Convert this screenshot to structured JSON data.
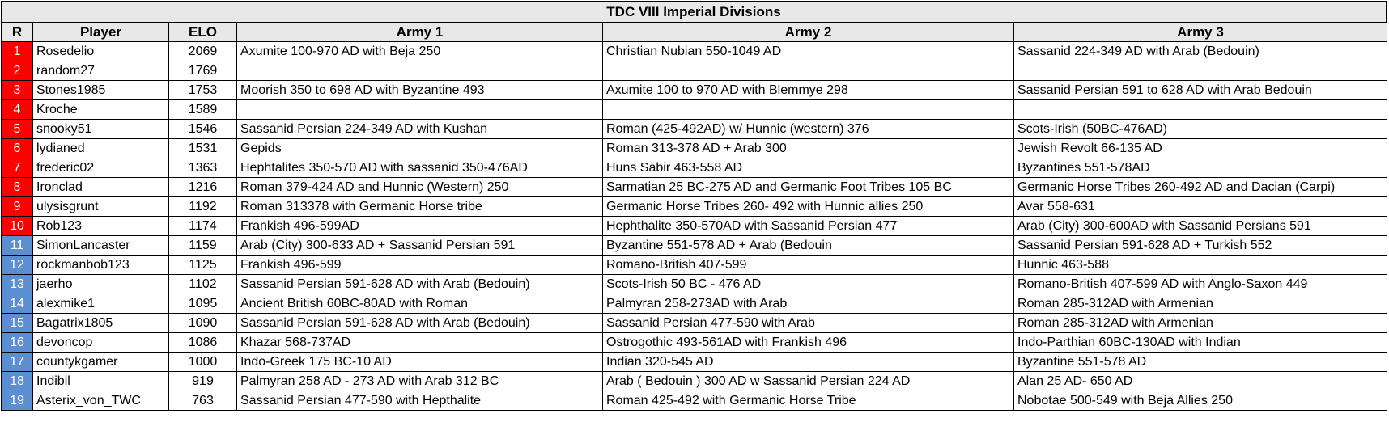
{
  "title": "TDC VIII Imperial Divisions",
  "headers": [
    "R",
    "Player",
    "ELO",
    "Army 1",
    "Army 2",
    "Army 3"
  ],
  "colors": {
    "top_rank": "#ff0000",
    "lower_rank": "#5b8fd1",
    "header_bg": "#e8e8e8"
  },
  "rows": [
    {
      "r": "1",
      "player": "Rosedelio",
      "elo": "2069",
      "a1": "Axumite 100-970 AD with Beja 250",
      "a2": "Christian Nubian 550-1049 AD",
      "a3": "Sassanid 224-349 AD with Arab (Bedouin)",
      "group": "red"
    },
    {
      "r": "2",
      "player": "random27",
      "elo": "1769",
      "a1": "",
      "a2": "",
      "a3": "",
      "group": "red"
    },
    {
      "r": "3",
      "player": "Stones1985",
      "elo": "1753",
      "a1": "Moorish 350 to 698 AD with Byzantine 493",
      "a2": "Axumite 100 to 970 AD with Blemmye 298",
      "a3": "Sassanid Persian 591 to 628 AD with Arab Bedouin",
      "group": "red"
    },
    {
      "r": "4",
      "player": "Kroche",
      "elo": "1589",
      "a1": "",
      "a2": "",
      "a3": "",
      "group": "red"
    },
    {
      "r": "5",
      "player": "snooky51",
      "elo": "1546",
      "a1": "Sassanid Persian 224-349 AD with Kushan",
      "a2": "Roman (425-492AD) w/ Hunnic (western) 376",
      "a3": "Scots-Irish (50BC-476AD)",
      "group": "red"
    },
    {
      "r": "6",
      "player": "lydianed",
      "elo": "1531",
      "a1": "Gepids",
      "a2": "Roman 313-378 AD + Arab 300",
      "a3": "Jewish Revolt 66-135 AD",
      "group": "red"
    },
    {
      "r": "7",
      "player": "frederic02",
      "elo": "1363",
      "a1": "Hephtalites 350-570 AD with sassanid  350-476AD",
      "a2": "Huns Sabir 463-558 AD",
      "a3": "Byzantines 551-578AD",
      "group": "red"
    },
    {
      "r": "8",
      "player": "Ironclad",
      "elo": "1216",
      "a1": "Roman 379-424 AD and Hunnic (Western) 250",
      "a2": "Sarmatian 25 BC-275 AD and Germanic Foot Tribes 105 BC",
      "a3": "Germanic Horse Tribes 260-492 AD and Dacian (Carpi)",
      "group": "red"
    },
    {
      "r": "9",
      "player": "ulysisgrunt",
      "elo": "1192",
      "a1": "Roman 313378 with Germanic Horse tribe",
      "a2": "Germanic Horse Tribes 260- 492 with Hunnic allies 250",
      "a3": "Avar 558-631",
      "group": "red"
    },
    {
      "r": "10",
      "player": "Rob123",
      "elo": "1174",
      "a1": "Frankish 496-599AD",
      "a2": "Hephthalite 350-570AD with Sassanid Persian 477",
      "a3": "Arab (City) 300-600AD with Sassanid Persians 591",
      "group": "red"
    },
    {
      "r": "11",
      "player": "SimonLancaster",
      "elo": "1159",
      "a1": "Arab (City) 300-633 AD + Sassanid Persian 591",
      "a2": "Byzantine 551-578 AD + Arab (Bedouin",
      "a3": "Sassanid Persian 591-628 AD + Turkish 552",
      "group": "blue"
    },
    {
      "r": "12",
      "player": "rockmanbob123",
      "elo": "1125",
      "a1": "Frankish 496-599",
      "a2": "Romano-British 407-599",
      "a3": "Hunnic 463-588",
      "group": "blue"
    },
    {
      "r": "13",
      "player": "jaerho",
      "elo": "1102",
      "a1": "Sassanid Persian 591-628 AD with Arab (Bedouin)",
      "a2": "Scots-Irish 50 BC - 476 AD",
      "a3": "Romano-British 407-599 AD with Anglo-Saxon 449",
      "group": "blue"
    },
    {
      "r": "14",
      "player": "alexmike1",
      "elo": "1095",
      "a1": "Ancient British 60BC-80AD with Roman",
      "a2": "Palmyran 258-273AD with Arab",
      "a3": "Roman 285-312AD with Armenian",
      "group": "blue"
    },
    {
      "r": "15",
      "player": "Bagatrix1805",
      "elo": "1090",
      "a1": "Sassanid Persian 591-628 AD with Arab (Bedouin)",
      "a2": "Sassanid Persian 477-590 with Arab",
      "a3": "Roman 285-312AD with Armenian",
      "group": "blue"
    },
    {
      "r": "16",
      "player": "devoncop",
      "elo": "1086",
      "a1": "Khazar 568-737AD",
      "a2": "Ostrogothic 493-561AD with Frankish 496",
      "a3": "Indo-Parthian 60BC-130AD with Indian",
      "group": "blue"
    },
    {
      "r": "17",
      "player": "countykgamer",
      "elo": "1000",
      "a1": "Indo-Greek 175 BC-10 AD",
      "a2": "Indian 320-545 AD",
      "a3": "Byzantine 551-578 AD",
      "group": "blue"
    },
    {
      "r": "18",
      "player": "Indibil",
      "elo": "919",
      "a1": "Palmyran 258 AD - 273 AD with Arab 312 BC",
      "a2": "Arab ( Bedouin ) 300 AD w Sassanid Persian 224 AD",
      "a3": "Alan 25 AD- 650 AD",
      "group": "blue"
    },
    {
      "r": "19",
      "player": "Asterix_von_TWC",
      "elo": "763",
      "a1": "Sassanid Persian 477-590 with Hepthalite",
      "a2": "Roman 425-492 with Germanic Horse Tribe",
      "a3": "Nobotae 500-549 with Beja Allies 250",
      "group": "blue"
    }
  ]
}
